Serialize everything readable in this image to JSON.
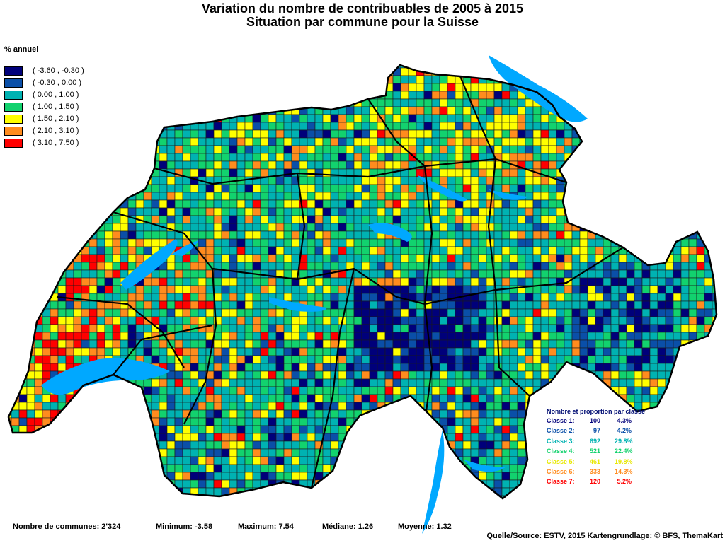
{
  "title": "Variation du nombre de contribuables de 2005 à 2015",
  "subtitle": "Situation par commune pour la Suisse",
  "legend": {
    "title": "% annuel",
    "classes": [
      {
        "label": "( -3.60 , -0.30 )",
        "color": "#00007a"
      },
      {
        "label": "( -0.30 , 0.00 )",
        "color": "#0a4fa8"
      },
      {
        "label": "( 0.00 , 1.00 )",
        "color": "#00b2b2"
      },
      {
        "label": "( 1.00 , 1.50 )",
        "color": "#12d26e"
      },
      {
        "label": "( 1.50 , 2.10 )",
        "color": "#ffff00"
      },
      {
        "label": "( 2.10 , 3.10 )",
        "color": "#ff8c1e"
      },
      {
        "label": "( 3.10 , 7.50 )",
        "color": "#ff0000"
      }
    ]
  },
  "class_stats": {
    "title": "Nombre et proportion par classe",
    "rows": [
      {
        "label": "Classe  1:",
        "count": "100",
        "pct": "4.3%",
        "color": "#00007a"
      },
      {
        "label": "Classe  2:",
        "count": "97",
        "pct": "4.2%",
        "color": "#0a4fa8"
      },
      {
        "label": "Classe  3:",
        "count": "692",
        "pct": "29.8%",
        "color": "#00b2b2"
      },
      {
        "label": "Classe  4:",
        "count": "521",
        "pct": "22.4%",
        "color": "#12d26e"
      },
      {
        "label": "Classe  5:",
        "count": "461",
        "pct": "19.8%",
        "color": "#ffff00"
      },
      {
        "label": "Classe  6:",
        "count": "333",
        "pct": "14.3%",
        "color": "#ff8c1e"
      },
      {
        "label": "Classe  7:",
        "count": "120",
        "pct": "5.2%",
        "color": "#ff0000"
      }
    ]
  },
  "footer": {
    "communes": "Nombre de communes: 2'324",
    "minimum": "Minimum: -3.58",
    "maximum": "Maximum: 7.54",
    "median": "Médiane: 1.26",
    "mean": "Moyenne: 1.32",
    "source": "Quelle/Source: ESTV, 2015 Kartengrundlage: © BFS, ThemaKart"
  },
  "lake_color": "#00a8ff",
  "border_color": "#000000"
}
